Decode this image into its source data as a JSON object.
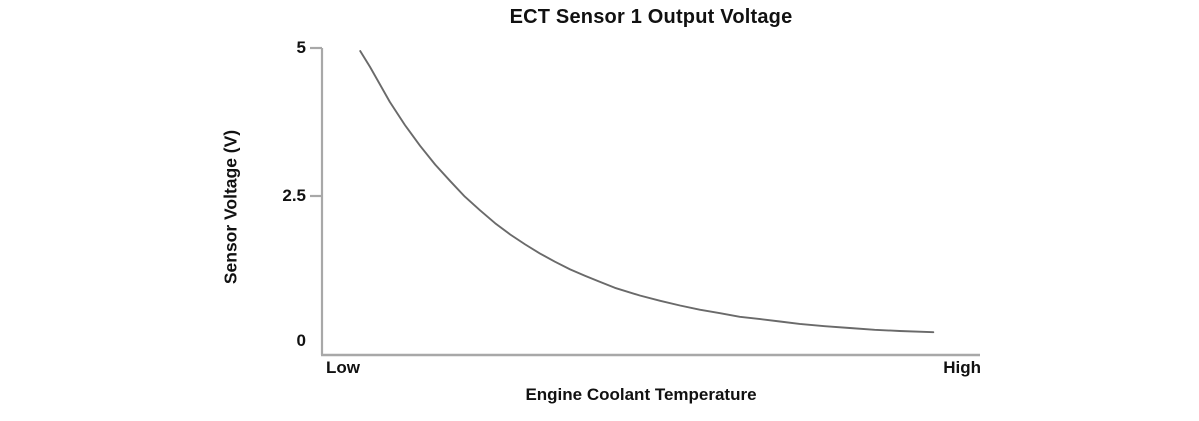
{
  "colors": {
    "curve": "#6a6a6a",
    "axis": "#a8a8a8",
    "text": "#111111",
    "background": "#ffffff"
  },
  "chart_data": {
    "type": "line",
    "title": "ECT Sensor 1 Output Voltage",
    "xlabel": "Engine Coolant Temperature",
    "ylabel": "Sensor Voltage (V)",
    "ylim": [
      0,
      5
    ],
    "grid": false,
    "legend": false,
    "curve_shape": "exponential decay from ~5 V at low coolant temperature to ~0.2 V at high coolant temperature",
    "x_axis": {
      "type": "qualitative",
      "min_label": "Low",
      "max_label": "High"
    },
    "yticks": [
      {
        "label": "5",
        "value": 5,
        "has_tick_mark": true
      },
      {
        "label": "2.5",
        "value": 2.5,
        "has_tick_mark": true
      },
      {
        "label": "0",
        "value": 0,
        "has_tick_mark": false
      }
    ],
    "series": [
      {
        "name": "ECT Sensor 1 output voltage",
        "points": [
          {
            "t": 0.058,
            "v": 4.95
          },
          {
            "t": 0.073,
            "v": 4.68
          },
          {
            "t": 0.103,
            "v": 4.09
          },
          {
            "t": 0.126,
            "v": 3.7
          },
          {
            "t": 0.149,
            "v": 3.35
          },
          {
            "t": 0.172,
            "v": 3.03
          },
          {
            "t": 0.195,
            "v": 2.75
          },
          {
            "t": 0.217,
            "v": 2.49
          },
          {
            "t": 0.24,
            "v": 2.26
          },
          {
            "t": 0.263,
            "v": 2.04
          },
          {
            "t": 0.286,
            "v": 1.85
          },
          {
            "t": 0.309,
            "v": 1.68
          },
          {
            "t": 0.331,
            "v": 1.53
          },
          {
            "t": 0.354,
            "v": 1.39
          },
          {
            "t": 0.377,
            "v": 1.26
          },
          {
            "t": 0.4,
            "v": 1.15
          },
          {
            "t": 0.422,
            "v": 1.05
          },
          {
            "t": 0.445,
            "v": 0.95
          },
          {
            "t": 0.483,
            "v": 0.82
          },
          {
            "t": 0.514,
            "v": 0.73
          },
          {
            "t": 0.544,
            "v": 0.65
          },
          {
            "t": 0.574,
            "v": 0.58
          },
          {
            "t": 0.605,
            "v": 0.52
          },
          {
            "t": 0.635,
            "v": 0.46
          },
          {
            "t": 0.666,
            "v": 0.42
          },
          {
            "t": 0.696,
            "v": 0.38
          },
          {
            "t": 0.726,
            "v": 0.34
          },
          {
            "t": 0.764,
            "v": 0.3
          },
          {
            "t": 0.802,
            "v": 0.27
          },
          {
            "t": 0.84,
            "v": 0.24
          },
          {
            "t": 0.878,
            "v": 0.22
          },
          {
            "t": 0.929,
            "v": 0.2
          }
        ]
      }
    ]
  }
}
